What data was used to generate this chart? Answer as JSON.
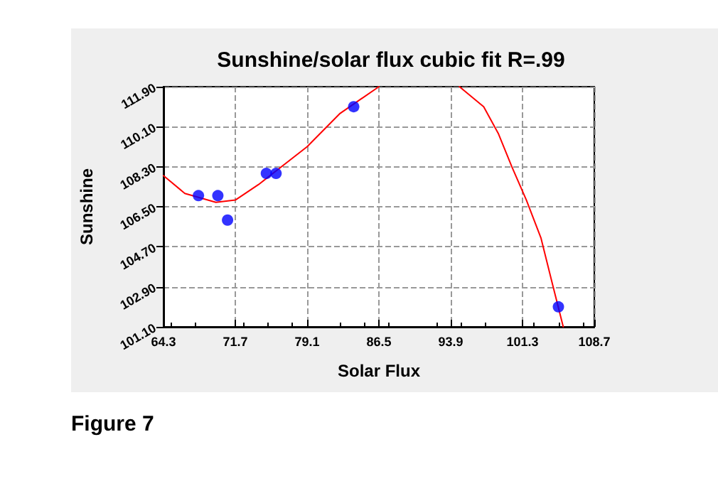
{
  "chart_data": {
    "type": "scatter",
    "title": "Sunshine/solar flux cubic fit R=.99",
    "xlabel": "Solar Flux",
    "ylabel": "Sunshine",
    "annotations": [
      "Figure 7"
    ],
    "xlim": [
      64.3,
      108.7
    ],
    "xticks": [
      64.3,
      71.7,
      79.1,
      86.5,
      93.9,
      101.3,
      108.7
    ],
    "ylim": [
      101.1,
      111.9
    ],
    "yticks": [
      {
        "value": 101.1,
        "label": "101.10"
      },
      {
        "value": 102.9,
        "label": "102.90"
      },
      {
        "value": 104.7,
        "label": "104.70"
      },
      {
        "value": 106.5,
        "label": "106.50"
      },
      {
        "value": 108.3,
        "label": "108.30"
      },
      {
        "value": 110.1,
        "label": "110.10"
      },
      {
        "value": 111.9,
        "label": "111.90"
      }
    ],
    "grid": true,
    "series": [
      {
        "color": "#0000ff",
        "marker": "circle",
        "x": [
          67.9,
          69.9,
          70.9,
          74.9,
          75.9,
          83.9,
          105.0
        ],
        "values": [
          107.0,
          107.0,
          105.9,
          108.0,
          108.0,
          111.0,
          102.0
        ]
      },
      {
        "type": "line",
        "color": "#ff0000",
        "marker": "none",
        "line_style": "solid",
        "x": [
          64.3,
          66.5,
          69.7,
          71.7,
          74.1,
          79.1,
          82.5,
          86.5,
          90.6,
          94.8,
          97.3,
          98.8,
          100.2,
          101.7,
          103.2,
          104.4,
          105.5
        ],
        "values": [
          107.9,
          107.1,
          106.7,
          106.8,
          107.5,
          109.2,
          110.7,
          111.9,
          null,
          111.9,
          111.0,
          109.8,
          108.3,
          106.8,
          105.1,
          103.0,
          101.1
        ]
      }
    ]
  }
}
